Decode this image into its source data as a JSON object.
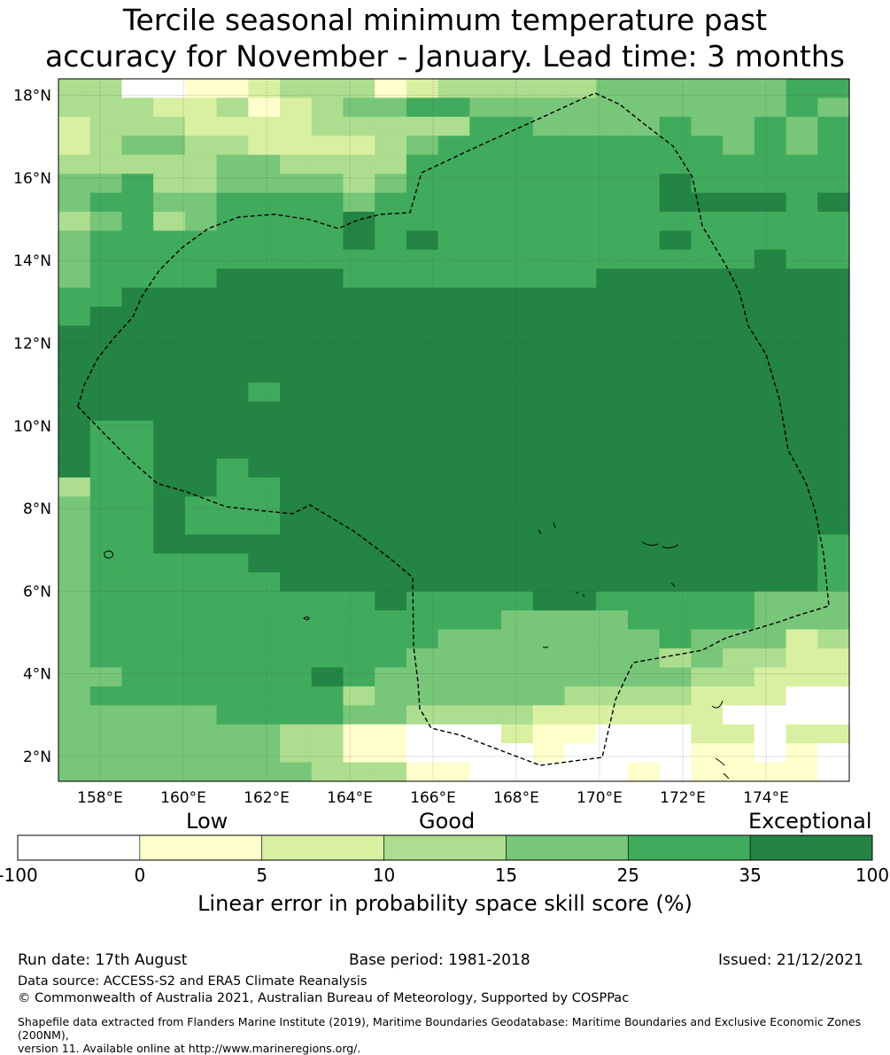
{
  "title_line1": "Tercile seasonal minimum temperature past",
  "title_line2": "accuracy for November - January. Lead time: 3 months",
  "map": {
    "lon_range": [
      157,
      176
    ],
    "lat_range": [
      1.4,
      18.4
    ],
    "lon_ticks": [
      {
        "value": 158,
        "label": "158°E"
      },
      {
        "value": 160,
        "label": "160°E"
      },
      {
        "value": 162,
        "label": "162°E"
      },
      {
        "value": 164,
        "label": "164°E"
      },
      {
        "value": 166,
        "label": "166°E"
      },
      {
        "value": 168,
        "label": "168°E"
      },
      {
        "value": 170,
        "label": "170°E"
      },
      {
        "value": 172,
        "label": "172°E"
      },
      {
        "value": 174,
        "label": "174°E"
      }
    ],
    "lat_ticks": [
      {
        "value": 2,
        "label": "2°N"
      },
      {
        "value": 4,
        "label": "4°N"
      },
      {
        "value": 6,
        "label": "6°N"
      },
      {
        "value": 8,
        "label": "8°N"
      },
      {
        "value": 10,
        "label": "10°N"
      },
      {
        "value": 12,
        "label": "12°N"
      },
      {
        "value": 14,
        "label": "14°N"
      },
      {
        "value": 16,
        "label": "16°N"
      },
      {
        "value": 18,
        "label": "18°N"
      }
    ],
    "boundary": "Exclusive Economic Zone (dashed outline)",
    "color_scale_note": "rows listed north to south, codes map to colorbar bins (0=-100..0 ... 6=35..100)"
  },
  "colorbar": {
    "categories": [
      {
        "name": "Low"
      },
      {
        "name": "Good"
      },
      {
        "name": "Exceptional"
      }
    ],
    "bins": [
      {
        "from": "-100",
        "to": "0",
        "color": "#ffffff"
      },
      {
        "from": "0",
        "to": "5",
        "color": "#ffffcc"
      },
      {
        "from": "5",
        "to": "10",
        "color": "#d9f0a3"
      },
      {
        "from": "10",
        "to": "15",
        "color": "#addd8e"
      },
      {
        "from": "15",
        "to": "25",
        "color": "#78c679"
      },
      {
        "from": "25",
        "to": "35",
        "color": "#41ab5d"
      },
      {
        "from": "35",
        "to": "100",
        "color": "#238443"
      }
    ],
    "tick_labels": [
      "-100",
      "0",
      "5",
      "10",
      "15",
      "25",
      "35",
      "100"
    ],
    "label": "Linear error in probability space skill score (%)"
  },
  "footer": {
    "run_date": "Run date: 17th August",
    "base_period": "Base period: 1981-2018",
    "issued": "Issued: 21/12/2021",
    "data_source": "Data source: ACCESS-S2 and ERA5 Climate Reanalysis",
    "copyright": "© Commonwealth of Australia 2021, Australian Bureau of Meteorology, Supported by COSPPac",
    "shapefile_line1": "Shapefile data extracted from Flanders Marine Institute (2019), Maritime Boundaries Geodatabase: Maritime Boundaries and Exclusive Economic Zones (200NM),",
    "shapefile_line2": "version 11. Available online at http://www.marineregions.org/."
  }
}
